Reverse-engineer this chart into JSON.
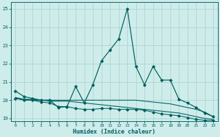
{
  "xlabel": "Humidex (Indice chaleur)",
  "bg_color": "#ceecea",
  "grid_color": "#aed4d0",
  "line_color": "#006060",
  "xlim": [
    -0.5,
    23.5
  ],
  "ylim": [
    18.85,
    25.35
  ],
  "yticks": [
    19,
    20,
    21,
    22,
    23,
    24,
    25
  ],
  "xticks": [
    0,
    1,
    2,
    3,
    4,
    5,
    6,
    7,
    8,
    9,
    10,
    11,
    12,
    13,
    14,
    15,
    16,
    17,
    18,
    19,
    20,
    21,
    22,
    23
  ],
  "line1_x": [
    0,
    1,
    2,
    3,
    4,
    5,
    6,
    7,
    8,
    9,
    10,
    11,
    12,
    13,
    14,
    15,
    16,
    17,
    18,
    19,
    20,
    21,
    22,
    23
  ],
  "line1_y": [
    20.5,
    20.2,
    20.1,
    20.0,
    20.0,
    19.6,
    19.65,
    20.75,
    19.85,
    20.85,
    22.15,
    22.75,
    23.35,
    25.0,
    21.85,
    20.85,
    21.85,
    21.1,
    21.1,
    20.05,
    19.85,
    19.6,
    19.3,
    19.1
  ],
  "line2_x": [
    0,
    1,
    2,
    3,
    4,
    5,
    6,
    7,
    8,
    9,
    10,
    11,
    12,
    13,
    14,
    15,
    16,
    17,
    18,
    19,
    20,
    21,
    22,
    23
  ],
  "line2_y": [
    20.15,
    20.05,
    20.05,
    20.0,
    20.0,
    20.0,
    20.0,
    20.0,
    20.0,
    20.0,
    20.0,
    20.0,
    20.0,
    20.0,
    20.0,
    19.95,
    19.9,
    19.85,
    19.8,
    19.7,
    19.6,
    19.5,
    19.35,
    19.1
  ],
  "line3_x": [
    0,
    1,
    2,
    3,
    4,
    5,
    6,
    7,
    8,
    9,
    10,
    11,
    12,
    13,
    14,
    15,
    16,
    17,
    18,
    19,
    20,
    21,
    22,
    23
  ],
  "line3_y": [
    20.1,
    20.0,
    20.0,
    19.9,
    19.85,
    19.65,
    19.65,
    19.55,
    19.5,
    19.5,
    19.55,
    19.55,
    19.5,
    19.5,
    19.5,
    19.45,
    19.35,
    19.25,
    19.2,
    19.15,
    19.05,
    18.95,
    18.9,
    18.9
  ],
  "line4_x": [
    0,
    1,
    2,
    3,
    4,
    5,
    6,
    7,
    8,
    9,
    10,
    11,
    12,
    13,
    14,
    15,
    16,
    17,
    18,
    19,
    20,
    21,
    22,
    23
  ],
  "line4_y": [
    20.1,
    20.05,
    20.0,
    20.0,
    19.95,
    19.95,
    19.95,
    19.9,
    19.85,
    19.8,
    19.75,
    19.7,
    19.65,
    19.6,
    19.55,
    19.5,
    19.45,
    19.4,
    19.35,
    19.3,
    19.2,
    19.1,
    19.0,
    18.95
  ]
}
